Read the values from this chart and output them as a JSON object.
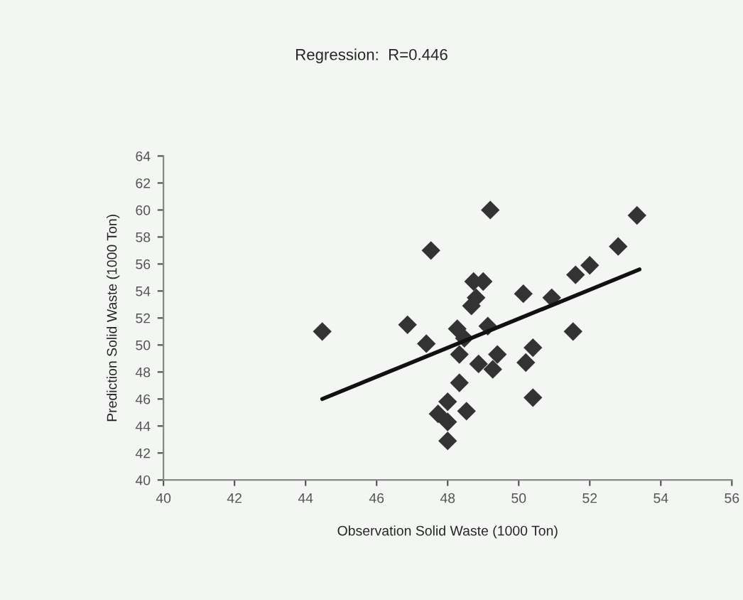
{
  "chart_data": {
    "type": "scatter",
    "title": "Regression:  R=0.446",
    "xlabel": "Observation Solid Waste (1000 Ton)",
    "ylabel": "Prediction Solid Waste (1000 Ton)",
    "xlim": [
      40,
      56
    ],
    "xticks": [
      40,
      42,
      44,
      46,
      48,
      50,
      52,
      54,
      56
    ],
    "ylim": [
      40,
      64
    ],
    "yticks": [
      40,
      42,
      44,
      46,
      48,
      50,
      52,
      54,
      56,
      58,
      60,
      62,
      64
    ],
    "grid": false,
    "legend": false,
    "marker": "diamond",
    "series": [
      {
        "color": "#333333",
        "x": [
          44.47,
          49.2,
          47.53,
          53.33,
          52.8,
          52.0,
          51.6,
          50.13,
          50.93,
          51.53,
          48.73,
          49.0,
          48.8,
          48.67,
          46.87,
          47.4,
          48.27,
          48.47,
          49.13,
          48.33,
          48.87,
          49.4,
          49.27,
          50.4,
          50.2,
          48.33,
          50.4,
          48.0,
          47.73,
          48.53,
          48.0,
          48.0
        ],
        "values": [
          51.0,
          60.0,
          57.0,
          59.6,
          57.3,
          55.9,
          55.2,
          53.8,
          53.5,
          51.0,
          54.7,
          54.7,
          53.5,
          52.9,
          51.5,
          50.1,
          51.2,
          50.5,
          51.4,
          49.3,
          48.6,
          49.3,
          48.2,
          49.8,
          48.7,
          47.2,
          46.1,
          45.8,
          44.9,
          45.1,
          44.3,
          42.9
        ]
      },
      {
        "type": "line",
        "color": "#111111",
        "marker": "none",
        "x": [
          44.47,
          53.4
        ],
        "values": [
          46.0,
          55.6
        ]
      }
    ]
  }
}
